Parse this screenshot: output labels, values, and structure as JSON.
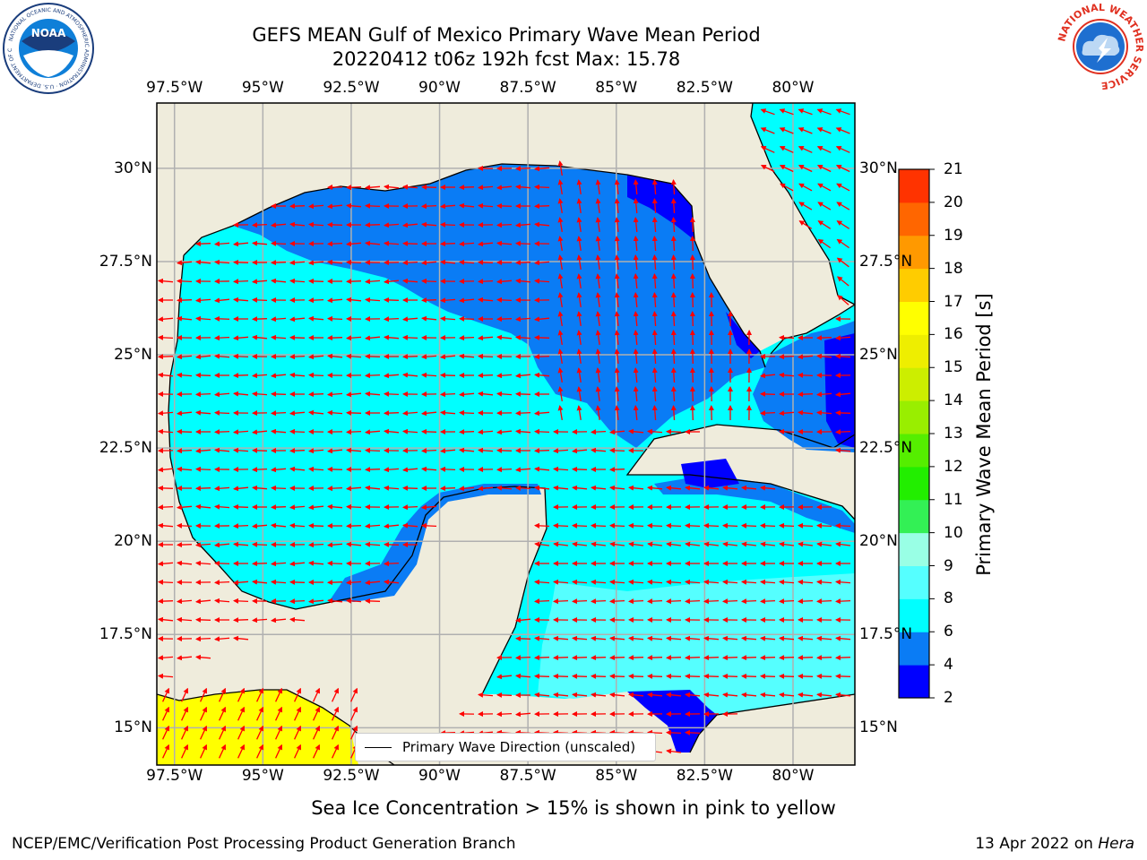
{
  "header": {
    "title_line1": "GEFS MEAN Gulf of Mexico Primary Wave Mean Period",
    "title_line2": "20220412 t06z 192h fcst   Max: 15.78"
  },
  "logos": {
    "left": {
      "name": "noaa-logo",
      "text": "NOAA",
      "ring_text": "NATIONAL OCEANIC AND ATMOSPHERIC ADMINISTRATION · U.S. DEPARTMENT OF COMMERCE"
    },
    "right": {
      "name": "nws-logo",
      "ring_text": "NATIONAL WEATHER SERVICE"
    }
  },
  "map": {
    "lon_labels": [
      "97.5°W",
      "95°W",
      "92.5°W",
      "90°W",
      "87.5°W",
      "85°W",
      "82.5°W",
      "80°W"
    ],
    "lat_labels": [
      "30°N",
      "27.5°N",
      "25°N",
      "22.5°N",
      "20°N",
      "17.5°N",
      "15°N"
    ],
    "lon_range": [
      -98,
      -78.25
    ],
    "lat_range": [
      14,
      31.75
    ],
    "colors": {
      "land": "#efecdc",
      "gridline": "#b0b0b0",
      "arrow": "#ff0000",
      "coast": "#000000"
    }
  },
  "colorbar": {
    "label": "Primary Wave Mean Period [s]",
    "ticks": [
      "2",
      "4",
      "6",
      "8",
      "9",
      "10",
      "11",
      "12",
      "13",
      "14",
      "15",
      "16",
      "17",
      "18",
      "19",
      "20",
      "21"
    ],
    "colors": [
      "#0000ff",
      "#0a7cf5",
      "#00ffff",
      "#55ffff",
      "#99ffe5",
      "#33f055",
      "#22ee00",
      "#55ee00",
      "#99ee00",
      "#ccee00",
      "#eeee00",
      "#ffff00",
      "#ffcc00",
      "#ff9900",
      "#ff6600",
      "#ff3300",
      "#ff0000"
    ]
  },
  "legend": {
    "label": "Primary Wave Direction (unscaled)"
  },
  "note": "Sea Ice Concentration > 15% is shown in pink to yellow",
  "footer": {
    "left": "NCEP/EMC/Verification Post Processing Product Generation Branch",
    "date": "13 Apr 2022 on ",
    "machine": "Hera"
  }
}
